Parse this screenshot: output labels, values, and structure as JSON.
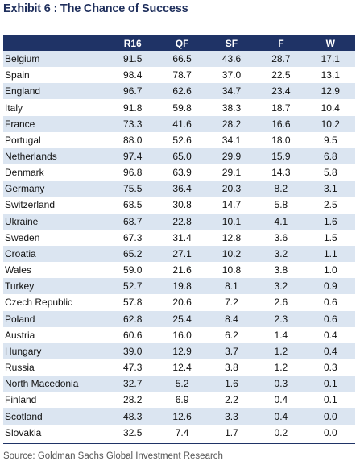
{
  "title": "Exhibit 6 : The Chance of Success",
  "table": {
    "header": [
      "R16",
      "QF",
      "SF",
      "F",
      "W"
    ],
    "rows": [
      [
        "Belgium",
        "91.5",
        "66.5",
        "43.6",
        "28.7",
        "17.1"
      ],
      [
        "Spain",
        "98.4",
        "78.7",
        "37.0",
        "22.5",
        "13.1"
      ],
      [
        "England",
        "96.7",
        "62.6",
        "34.7",
        "23.4",
        "12.9"
      ],
      [
        "Italy",
        "91.8",
        "59.8",
        "38.3",
        "18.7",
        "10.4"
      ],
      [
        "France",
        "73.3",
        "41.6",
        "28.2",
        "16.6",
        "10.2"
      ],
      [
        "Portugal",
        "88.0",
        "52.6",
        "34.1",
        "18.0",
        "9.5"
      ],
      [
        "Netherlands",
        "97.4",
        "65.0",
        "29.9",
        "15.9",
        "6.8"
      ],
      [
        "Denmark",
        "96.8",
        "63.9",
        "29.1",
        "14.3",
        "5.8"
      ],
      [
        "Germany",
        "75.5",
        "36.4",
        "20.3",
        "8.2",
        "3.1"
      ],
      [
        "Switzerland",
        "68.5",
        "30.8",
        "14.7",
        "5.8",
        "2.5"
      ],
      [
        "Ukraine",
        "68.7",
        "22.8",
        "10.1",
        "4.1",
        "1.6"
      ],
      [
        "Sweden",
        "67.3",
        "31.4",
        "12.8",
        "3.6",
        "1.5"
      ],
      [
        "Croatia",
        "65.2",
        "27.1",
        "10.2",
        "3.2",
        "1.1"
      ],
      [
        "Wales",
        "59.0",
        "21.6",
        "10.8",
        "3.8",
        "1.0"
      ],
      [
        "Turkey",
        "52.7",
        "19.8",
        "8.1",
        "3.2",
        "0.9"
      ],
      [
        "Czech Republic",
        "57.8",
        "20.6",
        "7.2",
        "2.6",
        "0.6"
      ],
      [
        "Poland",
        "62.8",
        "25.4",
        "8.4",
        "2.3",
        "0.6"
      ],
      [
        "Austria",
        "60.6",
        "16.0",
        "6.2",
        "1.4",
        "0.4"
      ],
      [
        "Hungary",
        "39.0",
        "12.9",
        "3.7",
        "1.2",
        "0.4"
      ],
      [
        "Russia",
        "47.3",
        "12.4",
        "3.8",
        "1.2",
        "0.3"
      ],
      [
        "North Macedonia",
        "32.7",
        "5.2",
        "1.6",
        "0.3",
        "0.1"
      ],
      [
        "Finland",
        "28.2",
        "6.9",
        "2.2",
        "0.4",
        "0.1"
      ],
      [
        "Scotland",
        "48.3",
        "12.6",
        "3.3",
        "0.4",
        "0.0"
      ],
      [
        "Slovakia",
        "32.5",
        "7.4",
        "1.7",
        "0.2",
        "0.0"
      ]
    ]
  },
  "source": "Source: Goldman Sachs Global Investment Research"
}
